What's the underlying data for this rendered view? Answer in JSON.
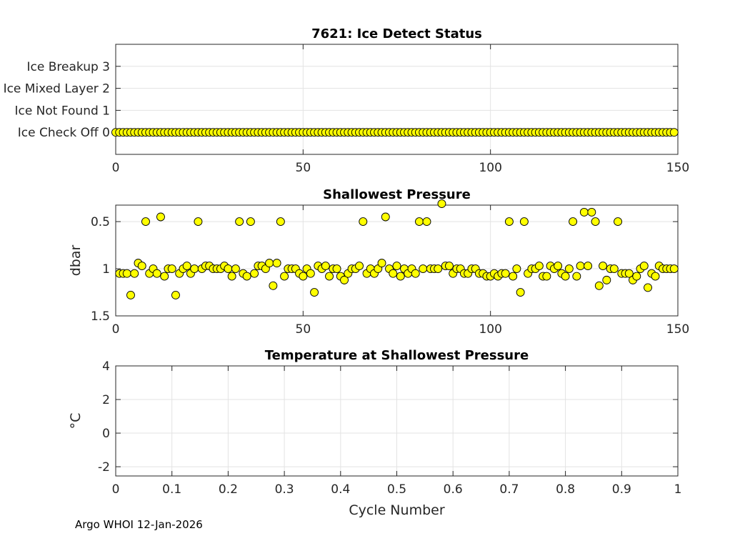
{
  "footer": "Argo WHOI 12-Jan-2026",
  "chart_data": [
    {
      "type": "scatter",
      "title": "7621: Ice Detect Status",
      "xlabel": "",
      "ylabel": "",
      "xlim": [
        0,
        150
      ],
      "ylim": [
        -1,
        4
      ],
      "xticks": [
        0,
        50,
        100,
        150
      ],
      "yticks": [
        0,
        1,
        2,
        3
      ],
      "ytick_labels": [
        "Ice Check Off 0",
        "Ice Not Found 1",
        "Ice Mixed Layer 2",
        "Ice Breakup 3"
      ],
      "grid": true,
      "marker_color": "#ffff00",
      "x_range": [
        0,
        149
      ],
      "constant_value": 0
    },
    {
      "type": "scatter",
      "title": "Shallowest Pressure",
      "xlabel": "",
      "ylabel": "dbar",
      "xlim": [
        0,
        150
      ],
      "ylim": [
        0.325,
        1.5
      ],
      "y_reversed": true,
      "xticks": [
        0,
        50,
        100,
        150
      ],
      "yticks": [
        0.5,
        1,
        1.5
      ],
      "grid": true,
      "marker_color": "#ffff00",
      "x_start": 1,
      "values": [
        1.05,
        1.05,
        1.05,
        1.28,
        1.05,
        0.94,
        0.97,
        0.5,
        1.05,
        1.0,
        1.05,
        0.45,
        1.08,
        1.0,
        1.0,
        1.28,
        1.05,
        1.0,
        0.97,
        1.05,
        1.0,
        0.5,
        1.0,
        0.97,
        0.97,
        1.0,
        1.0,
        1.0,
        0.97,
        1.0,
        1.08,
        1.0,
        0.5,
        1.05,
        1.08,
        0.5,
        1.05,
        0.97,
        0.97,
        1.0,
        0.94,
        1.18,
        0.94,
        0.5,
        1.08,
        1.0,
        1.0,
        1.0,
        1.05,
        1.08,
        1.0,
        1.05,
        1.25,
        0.97,
        1.0,
        0.97,
        1.08,
        1.0,
        1.0,
        1.08,
        1.12,
        1.05,
        1.0,
        1.0,
        0.97,
        0.5,
        1.05,
        1.0,
        1.05,
        1.0,
        0.94,
        0.45,
        1.0,
        1.05,
        0.97,
        1.08,
        1.0,
        1.05,
        1.0,
        1.05,
        0.5,
        1.0,
        0.5,
        1.0,
        1.0,
        1.0,
        0.31,
        0.97,
        0.97,
        1.05,
        1.0,
        1.0,
        1.05,
        1.05,
        1.0,
        1.0,
        1.05,
        1.05,
        1.08,
        1.08,
        1.05,
        1.08,
        1.05,
        1.05,
        0.5,
        1.08,
        1.0,
        1.25,
        0.5,
        1.05,
        1.0,
        1.0,
        0.97,
        1.08,
        1.08,
        0.97,
        1.0,
        0.97,
        1.05,
        1.08,
        1.0,
        0.5,
        1.08,
        0.97,
        0.4,
        0.97,
        0.4,
        0.5,
        1.18,
        0.97,
        1.12,
        1.0,
        1.0,
        0.5,
        1.05,
        1.05,
        1.05,
        1.12,
        1.08,
        1.0,
        0.97,
        1.2,
        1.05,
        1.08,
        0.97,
        1.0,
        1.0,
        1.0,
        1.0
      ]
    },
    {
      "type": "scatter",
      "title": "Temperature at Shallowest Pressure",
      "xlabel": "Cycle Number",
      "ylabel": "°C",
      "xlim": [
        0,
        1
      ],
      "ylim": [
        -2.55,
        4
      ],
      "xticks": [
        0,
        0.1,
        0.2,
        0.3,
        0.4,
        0.5,
        0.6,
        0.7,
        0.8,
        0.9,
        1
      ],
      "xtick_labels": [
        "0",
        "0.1",
        "0.2",
        "0.3",
        "0.4",
        "0.5",
        "0.6",
        "0.7",
        "0.8",
        "0.9",
        "1"
      ],
      "yticks": [
        -2,
        0,
        2,
        4
      ],
      "grid": true,
      "values": []
    }
  ]
}
